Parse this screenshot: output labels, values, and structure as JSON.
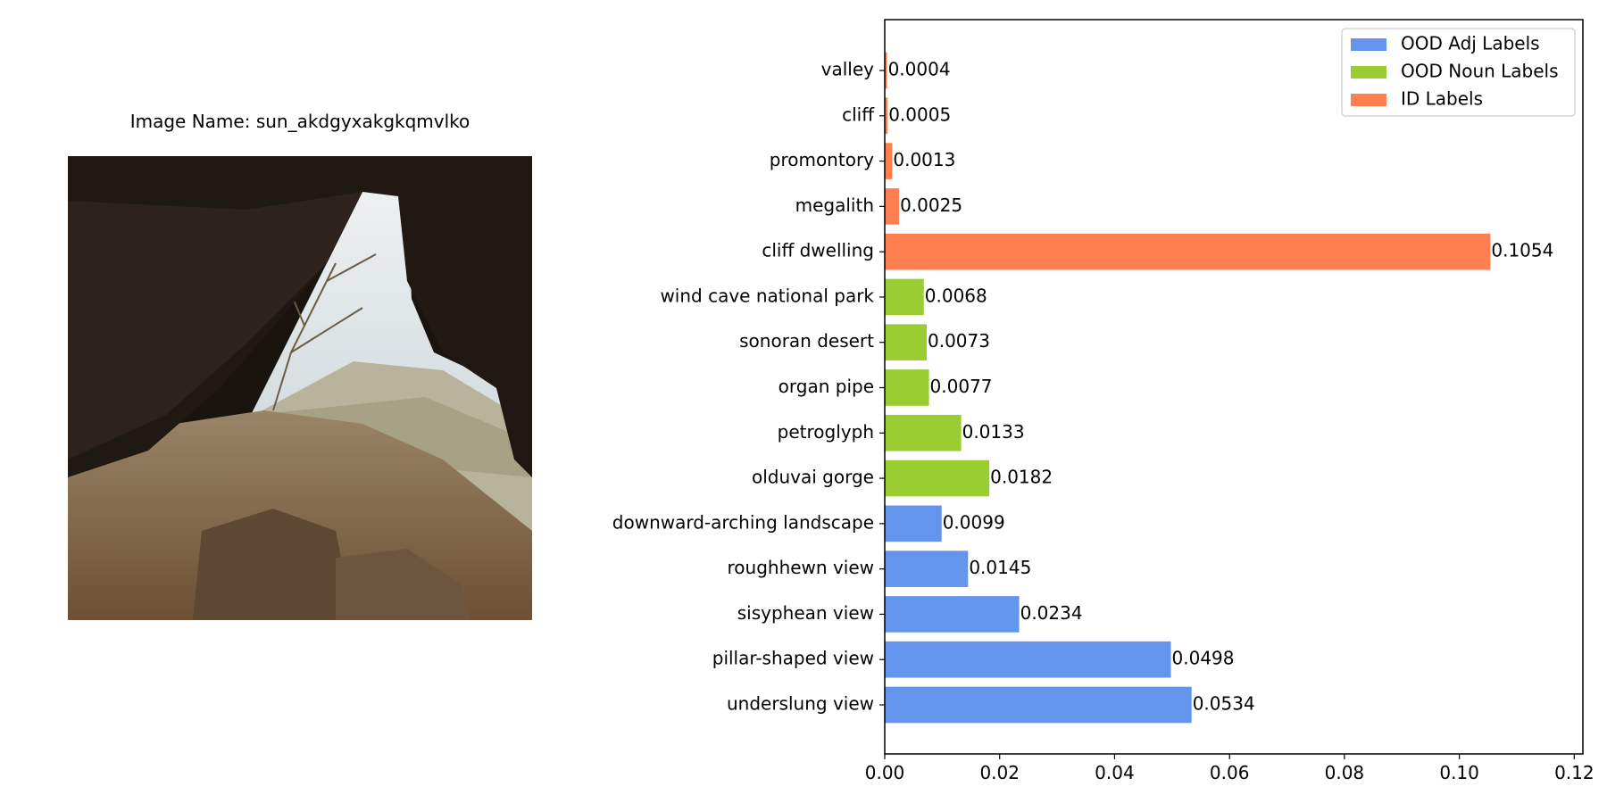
{
  "image_panel": {
    "title": "Image Name: sun_akdgyxakgkqmvlko",
    "photo_icon": "cave-opening-desert-landscape-photo"
  },
  "colors": {
    "ood_adj": "#6495ED",
    "ood_noun": "#9ACD32",
    "id": "#FF7F50"
  },
  "chart_data": {
    "type": "bar",
    "orientation": "horizontal",
    "title": "",
    "xlabel": "",
    "ylabel": "",
    "xlim": [
      0,
      0.1215
    ],
    "xticks": [
      "0.00",
      "0.02",
      "0.04",
      "0.06",
      "0.08",
      "0.10",
      "0.12"
    ],
    "xtick_values": [
      0.0,
      0.02,
      0.04,
      0.06,
      0.08,
      0.1,
      0.12
    ],
    "legend_position": "top-right",
    "legend": [
      {
        "label": "OOD Adj Labels",
        "group": "ood_adj"
      },
      {
        "label": "OOD Noun Labels",
        "group": "ood_noun"
      },
      {
        "label": "ID Labels",
        "group": "id"
      }
    ],
    "bars": [
      {
        "category": "underslung view",
        "value": 0.0534,
        "label": "0.0534",
        "group": "ood_adj"
      },
      {
        "category": "pillar-shaped view",
        "value": 0.0498,
        "label": "0.0498",
        "group": "ood_adj"
      },
      {
        "category": "sisyphean view",
        "value": 0.0234,
        "label": "0.0234",
        "group": "ood_adj"
      },
      {
        "category": "roughhewn view",
        "value": 0.0145,
        "label": "0.0145",
        "group": "ood_adj"
      },
      {
        "category": "downward-arching landscape",
        "value": 0.0099,
        "label": "0.0099",
        "group": "ood_adj"
      },
      {
        "category": "olduvai gorge",
        "value": 0.0182,
        "label": "0.0182",
        "group": "ood_noun"
      },
      {
        "category": "petroglyph",
        "value": 0.0133,
        "label": "0.0133",
        "group": "ood_noun"
      },
      {
        "category": "organ pipe",
        "value": 0.0077,
        "label": "0.0077",
        "group": "ood_noun"
      },
      {
        "category": "sonoran desert",
        "value": 0.0073,
        "label": "0.0073",
        "group": "ood_noun"
      },
      {
        "category": "wind cave national park",
        "value": 0.0068,
        "label": "0.0068",
        "group": "ood_noun"
      },
      {
        "category": "cliff dwelling",
        "value": 0.1054,
        "label": "0.1054",
        "group": "id"
      },
      {
        "category": "megalith",
        "value": 0.0025,
        "label": "0.0025",
        "group": "id"
      },
      {
        "category": "promontory",
        "value": 0.0013,
        "label": "0.0013",
        "group": "id"
      },
      {
        "category": "cliff",
        "value": 0.0005,
        "label": "0.0005",
        "group": "id"
      },
      {
        "category": "valley",
        "value": 0.0004,
        "label": "0.0004",
        "group": "id"
      }
    ]
  }
}
